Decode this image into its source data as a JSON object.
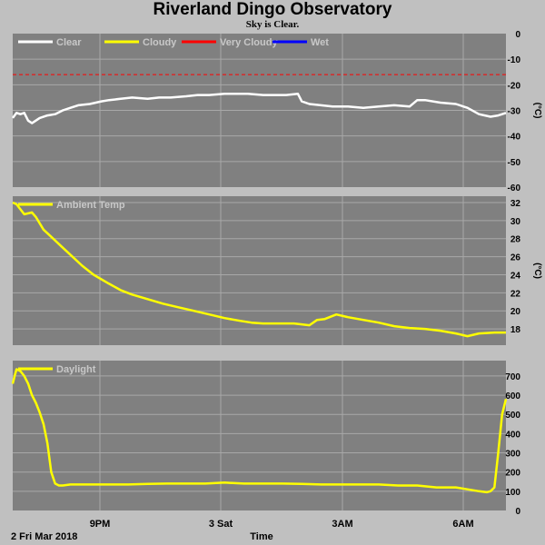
{
  "title": "Riverland Dingo Observatory",
  "subtitle": "Sky is Clear.",
  "x_axis": {
    "label": "Time",
    "date_label": "2 Fri Mar 2018",
    "ticks": [
      "9PM",
      "3 Sat",
      "3AM",
      "6AM"
    ]
  },
  "colors": {
    "plot_background": "#808080",
    "frame": "#c0c0c0",
    "grid": "#a8a8a8",
    "clear": "#ffffff",
    "cloudy": "#ffff00",
    "very_cloudy": "#ff0000",
    "wet": "#0000ff",
    "legend_text": "#c8c8c8"
  },
  "chart_data": [
    {
      "type": "line",
      "title": "",
      "legend": [
        {
          "name": "Clear",
          "color": "#ffffff"
        },
        {
          "name": "Cloudy",
          "color": "#ffff00"
        },
        {
          "name": "Very Cloudy",
          "color": "#ff0000"
        },
        {
          "name": "Wet",
          "color": "#0000ff"
        }
      ],
      "legend_position": "top-left",
      "ylabel": "(°C)",
      "ylim": [
        -60,
        0
      ],
      "yticks": [
        "0",
        "-10",
        "-20",
        "-30",
        "-40",
        "-50",
        "-60"
      ],
      "xlim": [
        17.5,
        30.3
      ],
      "x_unit": "hours from midnight 2 Mar 2018",
      "threshold": {
        "name": "Very Cloudy",
        "value": -16,
        "color": "#ff0000",
        "style": "dashed"
      },
      "series": [
        {
          "name": "Clear",
          "color": "#ffffff",
          "x": [
            17.5,
            17.6,
            17.7,
            17.8,
            17.9,
            18.0,
            18.2,
            18.4,
            18.6,
            18.8,
            19.0,
            19.2,
            19.5,
            19.8,
            20.0,
            20.3,
            20.6,
            21.0,
            21.3,
            21.6,
            22.0,
            22.3,
            22.6,
            23.0,
            23.3,
            23.6,
            24.0,
            24.3,
            24.6,
            24.9,
            25.0,
            25.2,
            25.5,
            25.8,
            26.2,
            26.6,
            27.0,
            27.4,
            27.8,
            28.0,
            28.2,
            28.6,
            29.0,
            29.3,
            29.6,
            29.9,
            30.1,
            30.3
          ],
          "y": [
            -33,
            -31,
            -31.5,
            -31,
            -34,
            -35,
            -33,
            -32,
            -31.5,
            -30,
            -29,
            -28,
            -27.5,
            -26.5,
            -26,
            -25.5,
            -25,
            -25.5,
            -25,
            -25,
            -24.5,
            -24,
            -24,
            -23.5,
            -23.5,
            -23.5,
            -24,
            -24,
            -24,
            -23.5,
            -26.5,
            -27.5,
            -28,
            -28.5,
            -28.5,
            -29,
            -28.5,
            -28,
            -28.5,
            -26,
            -26,
            -27,
            -27.5,
            -29,
            -31.5,
            -32.5,
            -32,
            -31
          ]
        }
      ]
    },
    {
      "type": "line",
      "title": "",
      "legend": [
        {
          "name": "Ambient Temp",
          "color": "#ffff00"
        }
      ],
      "legend_position": "top-left",
      "ylabel": "(°C)",
      "ylim": [
        16.2,
        32.7
      ],
      "yticks": [
        "32",
        "30",
        "28",
        "26",
        "24",
        "22",
        "20",
        "18"
      ],
      "xlim": [
        17.5,
        30.3
      ],
      "series": [
        {
          "name": "Ambient Temp",
          "color": "#ffff00",
          "x": [
            17.5,
            17.6,
            17.8,
            18.0,
            18.1,
            18.3,
            18.5,
            18.8,
            19.0,
            19.3,
            19.6,
            20.0,
            20.3,
            20.6,
            21.0,
            21.4,
            21.8,
            22.2,
            22.6,
            23.0,
            23.4,
            23.7,
            24.0,
            24.4,
            24.8,
            25.2,
            25.4,
            25.6,
            25.9,
            26.2,
            26.6,
            27.0,
            27.4,
            27.8,
            28.2,
            28.6,
            29.0,
            29.3,
            29.6,
            30.0,
            30.3
          ],
          "y": [
            32,
            31.8,
            30.7,
            30.9,
            30.4,
            29,
            28.2,
            27,
            26.2,
            25,
            24,
            23,
            22.3,
            21.8,
            21.3,
            20.8,
            20.4,
            20,
            19.6,
            19.2,
            18.9,
            18.7,
            18.6,
            18.6,
            18.6,
            18.4,
            19,
            19.1,
            19.6,
            19.3,
            19,
            18.7,
            18.3,
            18.1,
            18,
            17.8,
            17.5,
            17.2,
            17.5,
            17.6,
            17.6
          ]
        }
      ]
    },
    {
      "type": "line",
      "title": "",
      "legend": [
        {
          "name": "Daylight",
          "color": "#ffff00"
        }
      ],
      "legend_position": "top-left",
      "ylabel": "",
      "ylim": [
        0,
        780
      ],
      "yticks": [
        "700",
        "600",
        "500",
        "400",
        "300",
        "200",
        "100",
        "0"
      ],
      "xlim": [
        17.5,
        30.3
      ],
      "series": [
        {
          "name": "Daylight",
          "color": "#ffff00",
          "x": [
            17.5,
            17.55,
            17.6,
            17.7,
            17.8,
            17.9,
            18.0,
            18.1,
            18.2,
            18.3,
            18.4,
            18.5,
            18.6,
            18.7,
            18.8,
            19.0,
            19.5,
            20.0,
            20.5,
            21.0,
            21.5,
            22.0,
            22.5,
            23.0,
            23.5,
            24.0,
            24.5,
            25.0,
            25.5,
            26.0,
            26.5,
            27.0,
            27.5,
            28.0,
            28.5,
            29.0,
            29.3,
            29.6,
            29.8,
            29.9,
            30.0,
            30.1,
            30.2,
            30.3
          ],
          "y": [
            660,
            700,
            735,
            725,
            700,
            660,
            600,
            560,
            510,
            450,
            350,
            200,
            140,
            130,
            130,
            135,
            135,
            135,
            135,
            138,
            140,
            140,
            140,
            145,
            140,
            140,
            140,
            138,
            135,
            135,
            135,
            135,
            130,
            130,
            120,
            120,
            110,
            100,
            95,
            100,
            120,
            300,
            500,
            580
          ]
        }
      ]
    }
  ]
}
